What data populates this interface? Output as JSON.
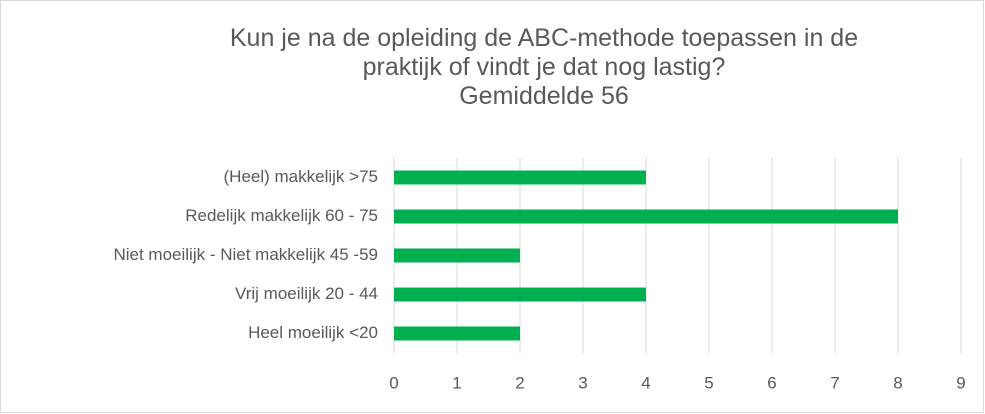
{
  "chart_data": {
    "type": "bar",
    "orientation": "horizontal",
    "title": "Kun je na de opleiding de ABC-methode toepassen in de praktijk of vindt je dat nog lastig?",
    "subtitle": "Gemiddelde 56",
    "categories": [
      "(Heel) makkelijk  >75",
      "Redelijk makkelijk 60 - 75",
      "Niet moeilijk - Niet makkelijk 45 -59",
      "Vrij moeilijk 20 - 44",
      "Heel moeilijk <20"
    ],
    "values": [
      4,
      8,
      2,
      4,
      2
    ],
    "color": "#00b050",
    "xlim": [
      0,
      9
    ],
    "xticks": [
      0,
      1,
      2,
      3,
      4,
      5,
      6,
      7,
      8,
      9
    ],
    "grid": true
  }
}
